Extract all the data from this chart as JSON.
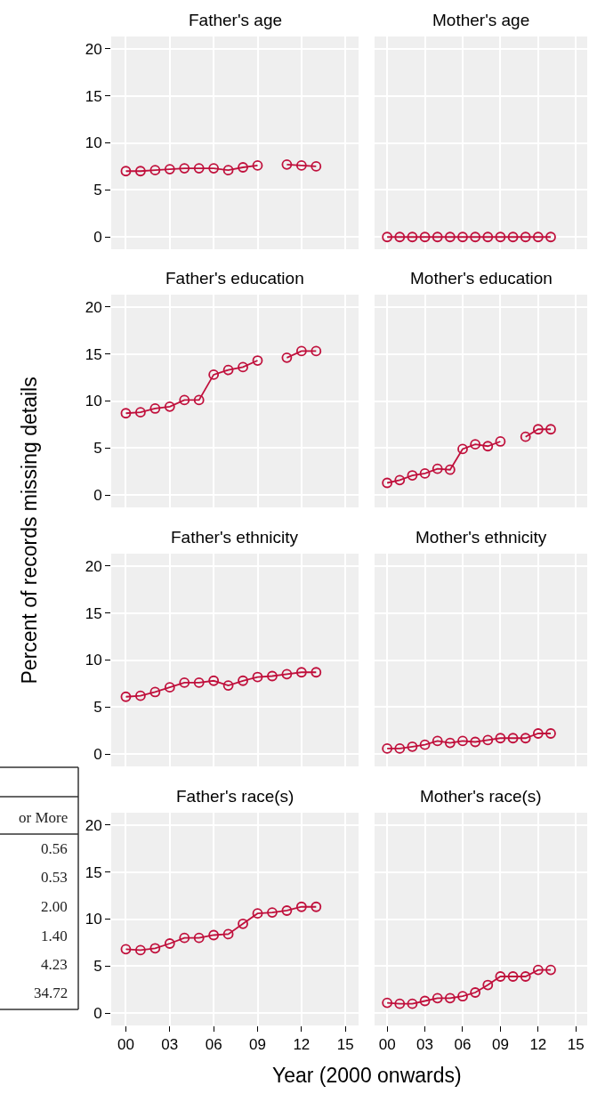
{
  "chart_data": [
    {
      "type": "line",
      "title": "Father's age",
      "x": [
        0,
        1,
        2,
        3,
        4,
        5,
        6,
        7,
        8,
        9,
        10,
        11,
        12,
        13
      ],
      "values": [
        7.0,
        7.0,
        7.1,
        7.2,
        7.3,
        7.3,
        7.3,
        7.1,
        7.4,
        7.6,
        null,
        7.7,
        7.6,
        7.5
      ],
      "color": "#c0103c",
      "xlim": [
        -1.0,
        15.9
      ],
      "ylim": [
        -1.3,
        21.3
      ],
      "xticks": [
        0,
        3,
        6,
        9,
        12,
        15
      ],
      "yticks": [
        0,
        5,
        10,
        15,
        20
      ],
      "grid": true,
      "marker": "circle",
      "tick_labels": "y"
    },
    {
      "type": "line",
      "title": "Mother's age",
      "x": [
        0,
        1,
        2,
        3,
        4,
        5,
        6,
        7,
        8,
        9,
        10,
        11,
        12,
        13
      ],
      "values": [
        0,
        0,
        0,
        0,
        0,
        0,
        0,
        0,
        0,
        0,
        0,
        0,
        0,
        0
      ],
      "color": "#c0103c",
      "xlim": [
        -1.0,
        15.9
      ],
      "ylim": [
        -1.3,
        21.3
      ],
      "xticks": [
        0,
        3,
        6,
        9,
        12,
        15
      ],
      "yticks": [
        0,
        5,
        10,
        15,
        20
      ],
      "grid": true,
      "marker": "circle",
      "tick_labels": false
    },
    {
      "type": "line",
      "title": "Father's education",
      "x": [
        0,
        1,
        2,
        3,
        4,
        5,
        6,
        7,
        8,
        9,
        10,
        11,
        12,
        13
      ],
      "values": [
        8.7,
        8.8,
        9.2,
        9.4,
        10.1,
        10.1,
        12.8,
        13.3,
        13.6,
        14.3,
        null,
        14.6,
        15.3,
        15.3
      ],
      "color": "#c0103c",
      "xlim": [
        -1.0,
        15.9
      ],
      "ylim": [
        -1.3,
        21.3
      ],
      "xticks": [
        0,
        3,
        6,
        9,
        12,
        15
      ],
      "yticks": [
        0,
        5,
        10,
        15,
        20
      ],
      "grid": true,
      "marker": "circle",
      "tick_labels": "y"
    },
    {
      "type": "line",
      "title": "Mother's education",
      "x": [
        0,
        1,
        2,
        3,
        4,
        5,
        6,
        7,
        8,
        9,
        10,
        11,
        12,
        13
      ],
      "values": [
        1.3,
        1.6,
        2.1,
        2.3,
        2.8,
        2.7,
        4.9,
        5.4,
        5.2,
        5.7,
        null,
        6.2,
        7.0,
        7.0
      ],
      "color": "#c0103c",
      "xlim": [
        -1.0,
        15.9
      ],
      "ylim": [
        -1.3,
        21.3
      ],
      "xticks": [
        0,
        3,
        6,
        9,
        12,
        15
      ],
      "yticks": [
        0,
        5,
        10,
        15,
        20
      ],
      "grid": true,
      "marker": "circle",
      "tick_labels": false
    },
    {
      "type": "line",
      "title": "Father's ethnicity",
      "x": [
        0,
        1,
        2,
        3,
        4,
        5,
        6,
        7,
        8,
        9,
        10,
        11,
        12,
        13
      ],
      "values": [
        6.1,
        6.2,
        6.6,
        7.1,
        7.6,
        7.6,
        7.8,
        7.3,
        7.8,
        8.2,
        8.3,
        8.5,
        8.7,
        8.7
      ],
      "color": "#c0103c",
      "xlim": [
        -1.0,
        15.9
      ],
      "ylim": [
        -1.3,
        21.3
      ],
      "xticks": [
        0,
        3,
        6,
        9,
        12,
        15
      ],
      "yticks": [
        0,
        5,
        10,
        15,
        20
      ],
      "grid": true,
      "marker": "circle",
      "tick_labels": "y"
    },
    {
      "type": "line",
      "title": "Mother's ethnicity",
      "x": [
        0,
        1,
        2,
        3,
        4,
        5,
        6,
        7,
        8,
        9,
        10,
        11,
        12,
        13
      ],
      "values": [
        0.6,
        0.6,
        0.8,
        1.0,
        1.4,
        1.2,
        1.4,
        1.3,
        1.5,
        1.7,
        1.7,
        1.7,
        2.2,
        2.2
      ],
      "color": "#c0103c",
      "xlim": [
        -1.0,
        15.9
      ],
      "ylim": [
        -1.3,
        21.3
      ],
      "xticks": [
        0,
        3,
        6,
        9,
        12,
        15
      ],
      "yticks": [
        0,
        5,
        10,
        15,
        20
      ],
      "grid": true,
      "marker": "circle",
      "tick_labels": false
    },
    {
      "type": "line",
      "title": "Father's race(s)",
      "x": [
        0,
        1,
        2,
        3,
        4,
        5,
        6,
        7,
        8,
        9,
        10,
        11,
        12,
        13
      ],
      "values": [
        6.8,
        6.7,
        6.9,
        7.4,
        8.0,
        8.0,
        8.3,
        8.4,
        9.5,
        10.6,
        10.7,
        10.9,
        11.3,
        11.3
      ],
      "color": "#c0103c",
      "xlim": [
        -1.0,
        15.9
      ],
      "ylim": [
        -1.3,
        21.3
      ],
      "xticks": [
        {
          "value": 0,
          "label": "00"
        },
        {
          "value": 3,
          "label": "03"
        },
        {
          "value": 6,
          "label": "06"
        },
        {
          "value": 9,
          "label": "09"
        },
        12,
        15
      ],
      "yticks": [
        0,
        5,
        10,
        15,
        20
      ],
      "grid": true,
      "marker": "circle"
    },
    {
      "type": "line",
      "title": "Mother's race(s)",
      "x": [
        0,
        1,
        2,
        3,
        4,
        5,
        6,
        7,
        8,
        9,
        10,
        11,
        12,
        13
      ],
      "values": [
        1.1,
        1.0,
        1.0,
        1.3,
        1.6,
        1.6,
        1.8,
        2.2,
        3.0,
        3.9,
        3.9,
        3.9,
        4.6,
        4.6
      ],
      "color": "#c0103c",
      "xlim": [
        -1.0,
        15.9
      ],
      "ylim": [
        -1.3,
        21.3
      ],
      "xticks": [
        {
          "value": 0,
          "label": "00"
        },
        {
          "value": 3,
          "label": "03"
        },
        {
          "value": 6,
          "label": "06"
        },
        {
          "value": 9,
          "label": "09"
        },
        12,
        15
      ],
      "yticks": [
        0,
        5,
        10,
        15,
        20
      ],
      "grid": true,
      "marker": "circle",
      "tick_labels": "x"
    },
    {
      "type": "other",
      "annotations": [
        "or More",
        "0.56",
        "0.53",
        "2.00",
        "1.40",
        "4.23",
        "34.72"
      ]
    },
    {
      "type": "other",
      "ylabel": "Percent of records missing details",
      "xlabel": "Year (2000 onwards)"
    }
  ]
}
